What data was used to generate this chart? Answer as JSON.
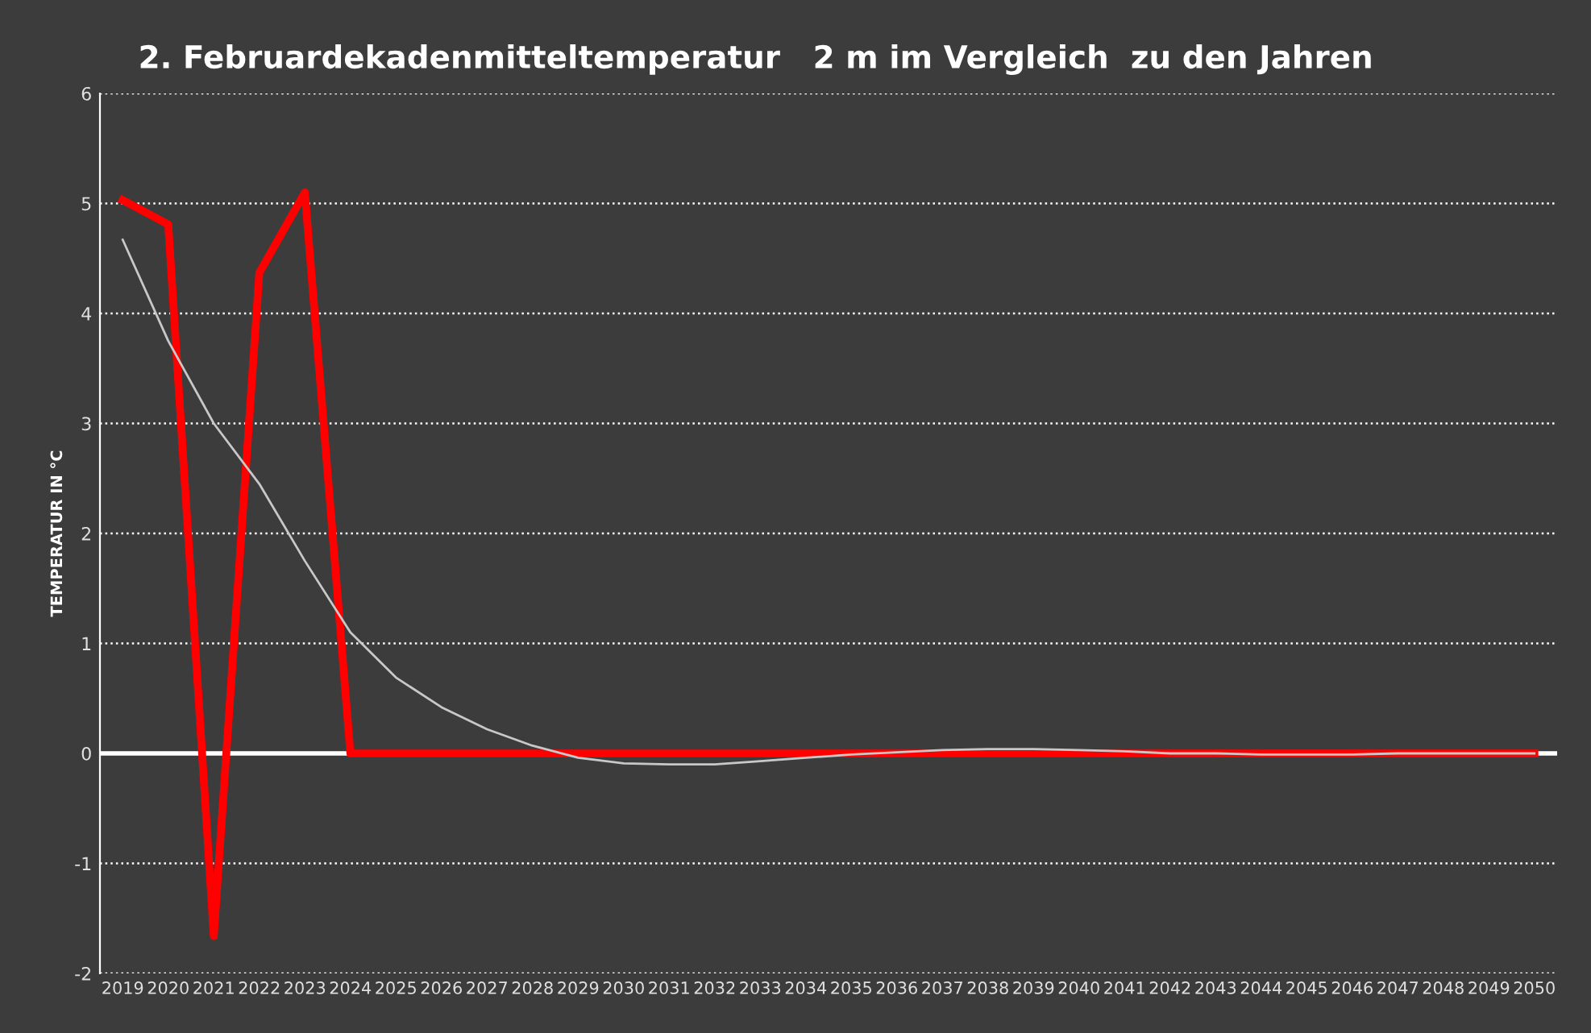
{
  "chart_data": {
    "type": "line",
    "title": "2. Februardekadenmitteltemperatur   2 m im Vergleich  zu den Jahren",
    "ylabel": "TEMPERATUR IN °C",
    "categories": [
      "2019",
      "2020",
      "2021",
      "2022",
      "2023",
      "2024",
      "2025",
      "2026",
      "2027",
      "2028",
      "2029",
      "2030",
      "2031",
      "2032",
      "2033",
      "2034",
      "2035",
      "2036",
      "2037",
      "2038",
      "2039",
      "2040",
      "2041",
      "2042",
      "2043",
      "2044",
      "2045",
      "2046",
      "2047",
      "2048",
      "2049",
      "2050"
    ],
    "series": [
      {
        "color": "#ff0000",
        "values": [
          5.03,
          4.81,
          -1.66,
          4.37,
          5.1,
          0,
          0,
          0,
          0,
          0,
          0,
          0,
          0,
          0,
          0,
          0,
          0,
          0,
          0,
          0,
          0,
          0,
          0,
          0,
          0,
          0,
          0,
          0,
          0,
          0,
          0,
          0
        ]
      },
      {
        "color": "#c8c8c8",
        "values": [
          4.67,
          3.75,
          3.0,
          2.45,
          1.75,
          1.1,
          0.69,
          0.42,
          0.22,
          0.07,
          -0.04,
          -0.09,
          -0.1,
          -0.1,
          -0.07,
          -0.04,
          -0.01,
          0.01,
          0.03,
          0.04,
          0.04,
          0.03,
          0.02,
          0,
          0,
          -0.01,
          -0.01,
          -0.01,
          0,
          0,
          0,
          0
        ]
      }
    ],
    "ylim": [
      -2,
      6
    ],
    "yticks": [
      -2,
      -1,
      0,
      1,
      2,
      3,
      4,
      5,
      6
    ],
    "grid": "y",
    "ref_lines": [
      {
        "axis": "y",
        "value": 0,
        "color": "#ffffff"
      }
    ]
  }
}
